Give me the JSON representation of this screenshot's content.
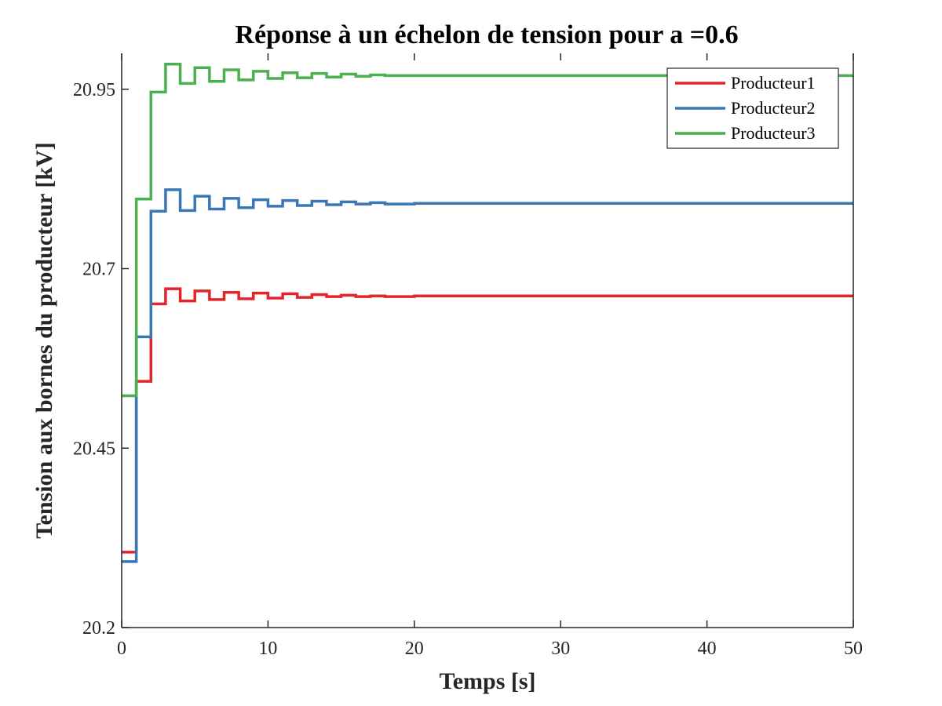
{
  "chart_data": {
    "type": "line",
    "title": "Réponse à un échelon de tension pour a =0.6",
    "xlabel": "Temps [s]",
    "ylabel": "Tension aux bornes du producteur [kV]",
    "xlim": [
      0,
      50
    ],
    "ylim": [
      20.2,
      21.0
    ],
    "xticks": [
      0,
      10,
      20,
      30,
      40,
      50
    ],
    "xtick_labels": [
      "0",
      "10",
      "20",
      "30",
      "40",
      "50"
    ],
    "yticks": [
      20.2,
      20.45,
      20.7,
      20.95
    ],
    "ytick_labels": [
      "20.2",
      "20.45",
      "20.7",
      "20.95"
    ],
    "grid": false,
    "legend_position": "top-right",
    "series": [
      {
        "name": "Producteur1",
        "color": "#e3242b",
        "x": [
          0,
          1,
          1,
          2,
          2,
          3,
          3,
          4,
          4,
          5,
          5,
          6,
          6,
          7,
          7,
          8,
          8,
          9,
          9,
          10,
          10,
          11,
          11,
          12,
          12,
          13,
          13,
          14,
          14,
          15,
          15,
          16,
          16,
          17,
          17,
          18,
          18,
          20,
          20,
          50
        ],
        "y": [
          20.305,
          20.305,
          20.543,
          20.543,
          20.651,
          20.651,
          20.672,
          20.672,
          20.655,
          20.655,
          20.669,
          20.669,
          20.657,
          20.657,
          20.667,
          20.667,
          20.658,
          20.658,
          20.666,
          20.666,
          20.659,
          20.659,
          20.665,
          20.665,
          20.66,
          20.66,
          20.664,
          20.664,
          20.661,
          20.661,
          20.663,
          20.663,
          20.661,
          20.661,
          20.662,
          20.662,
          20.661,
          20.661,
          20.662,
          20.662
        ]
      },
      {
        "name": "Producteur2",
        "color": "#3a78b5",
        "x": [
          0,
          1,
          1,
          2,
          2,
          3,
          3,
          4,
          4,
          5,
          5,
          6,
          6,
          7,
          7,
          8,
          8,
          9,
          9,
          10,
          10,
          11,
          11,
          12,
          12,
          13,
          13,
          14,
          14,
          15,
          15,
          16,
          16,
          17,
          17,
          18,
          18,
          20,
          20,
          50
        ],
        "y": [
          20.292,
          20.292,
          20.605,
          20.605,
          20.78,
          20.78,
          20.81,
          20.81,
          20.781,
          20.781,
          20.801,
          20.801,
          20.783,
          20.783,
          20.798,
          20.798,
          20.785,
          20.785,
          20.796,
          20.796,
          20.787,
          20.787,
          20.795,
          20.795,
          20.788,
          20.788,
          20.794,
          20.794,
          20.789,
          20.789,
          20.793,
          20.793,
          20.79,
          20.79,
          20.792,
          20.792,
          20.79,
          20.79,
          20.791,
          20.791
        ]
      },
      {
        "name": "Producteur3",
        "color": "#4caf50",
        "x": [
          0,
          1,
          1,
          2,
          2,
          3,
          3,
          4,
          4,
          5,
          5,
          6,
          6,
          7,
          7,
          8,
          8,
          9,
          9,
          10,
          10,
          11,
          11,
          12,
          12,
          13,
          13,
          14,
          14,
          15,
          15,
          16,
          16,
          17,
          17,
          18,
          18,
          20,
          20,
          50
        ],
        "y": [
          20.523,
          20.523,
          20.797,
          20.797,
          20.946,
          20.946,
          20.985,
          20.985,
          20.958,
          20.958,
          20.98,
          20.98,
          20.961,
          20.961,
          20.977,
          20.977,
          20.963,
          20.963,
          20.975,
          20.975,
          20.965,
          20.965,
          20.973,
          20.973,
          20.966,
          20.966,
          20.972,
          20.972,
          20.967,
          20.967,
          20.971,
          20.971,
          20.968,
          20.968,
          20.97,
          20.97,
          20.969,
          20.969,
          20.969,
          20.969
        ]
      }
    ]
  }
}
